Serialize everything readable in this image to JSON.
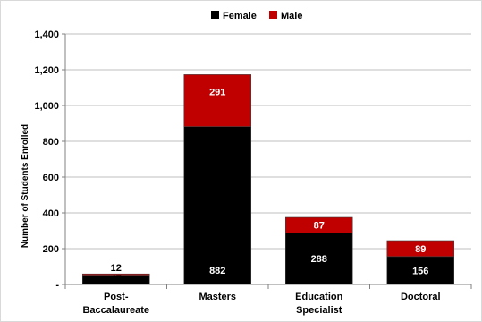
{
  "chart_data": {
    "type": "bar",
    "stacked": true,
    "categories": [
      [
        "Post-",
        "Baccalaureate"
      ],
      [
        "Masters"
      ],
      [
        "Education",
        "Specialist"
      ],
      [
        "Doctoral"
      ]
    ],
    "series": [
      {
        "name": "Female",
        "values": [
          47,
          882,
          288,
          156
        ],
        "color": "#000000",
        "label_color": "#ffffff"
      },
      {
        "name": "Male",
        "values": [
          12,
          291,
          87,
          89
        ],
        "color": "#c00000",
        "label_color": "#ffffff"
      }
    ],
    "ylabel": "Number of Students Enrolled",
    "ylim": [
      0,
      1400
    ],
    "yticks": [
      0,
      200,
      400,
      600,
      800,
      1000,
      1200,
      1400
    ],
    "ytick_labels": [
      "-",
      "200",
      "400",
      "600",
      "800",
      "1,000",
      "1,200",
      "1,400"
    ],
    "grid": true,
    "legend": "top-center",
    "colors": {
      "grid": "#bfbfbf",
      "axis": "#808080"
    }
  }
}
